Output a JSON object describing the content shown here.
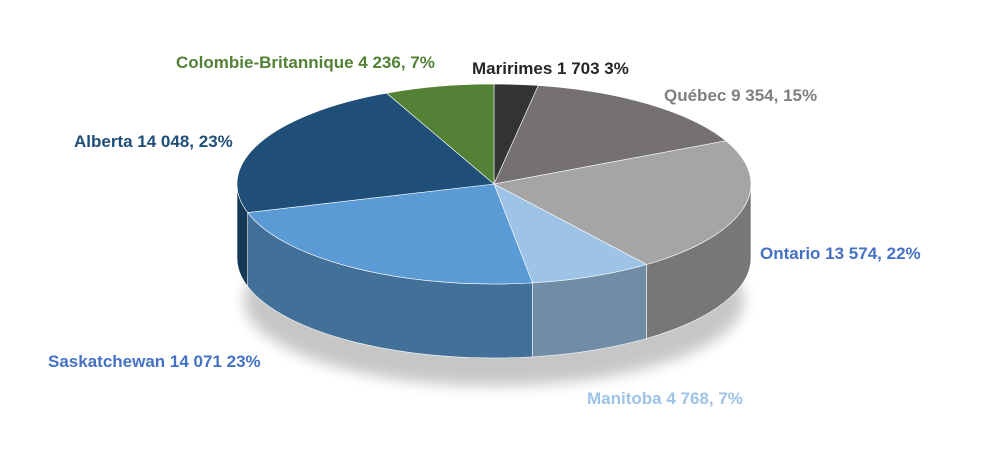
{
  "chart_data": {
    "type": "pie",
    "style": "3d-tilted",
    "title": "",
    "slices": [
      {
        "name": "Maririmes",
        "value": 1703,
        "percent": 3,
        "label": "Maririmes 1 703 3%",
        "color": "#333333",
        "label_color": "#262626"
      },
      {
        "name": "Québec",
        "value": 9354,
        "percent": 15,
        "label": "Québec 9 354, 15%",
        "color": "#767171",
        "label_color": "#7f7f7f"
      },
      {
        "name": "Ontario",
        "value": 13574,
        "percent": 22,
        "label": "Ontario 13 574, 22%",
        "color": "#a5a5a5",
        "label_color": "#4472c4"
      },
      {
        "name": "Manitoba",
        "value": 4768,
        "percent": 7,
        "label": "Manitoba 4 768, 7%",
        "color": "#9dc3e6",
        "label_color": "#9dc3e6"
      },
      {
        "name": "Saskatchewan",
        "value": 14071,
        "percent": 23,
        "label": "Saskatchewan 14 071 23%",
        "color": "#5b9bd5",
        "label_color": "#4472c4"
      },
      {
        "name": "Alberta",
        "value": 14048,
        "percent": 23,
        "label": "Alberta 14 048, 23%",
        "color": "#1f4e79",
        "label_color": "#1f4e79"
      },
      {
        "name": "Colombie-Britannique",
        "value": 4236,
        "percent": 7,
        "label": "Colombie-Britannique 4 236, 7%",
        "color": "#538135",
        "label_color": "#538135"
      }
    ]
  }
}
